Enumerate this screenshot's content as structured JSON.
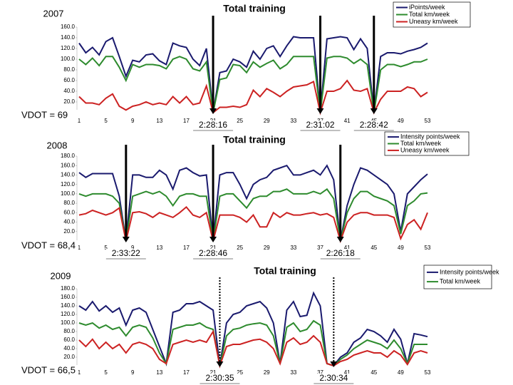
{
  "chart_data": [
    {
      "type": "line",
      "title": "Total training",
      "subtitle": "2007",
      "annotation": "VDOT = 69",
      "x": [
        1,
        2,
        3,
        4,
        5,
        6,
        7,
        8,
        9,
        10,
        11,
        12,
        13,
        14,
        15,
        16,
        17,
        18,
        19,
        20,
        21,
        22,
        23,
        24,
        25,
        26,
        27,
        28,
        29,
        30,
        31,
        32,
        33,
        34,
        35,
        36,
        37,
        38,
        39,
        40,
        41,
        42,
        43,
        44,
        45,
        46,
        47,
        48,
        49,
        50,
        51,
        52,
        53
      ],
      "xlim": [
        1,
        53
      ],
      "xticks": [
        1,
        5,
        9,
        13,
        17,
        21,
        25,
        29,
        33,
        37,
        41,
        45,
        49,
        53
      ],
      "ylim": [
        0,
        160
      ],
      "yticks": [
        {
          "value": 20,
          "label": "20.0"
        },
        {
          "value": 40,
          "label": "40.0"
        },
        {
          "value": 60,
          "label": "60.0"
        },
        {
          "value": 80,
          "label": "80.0"
        },
        {
          "value": 100,
          "label": "100.0"
        },
        {
          "value": 120,
          "label": "120.0"
        },
        {
          "value": 140,
          "label": "140.0"
        },
        {
          "value": 160,
          "label": "160.0"
        }
      ],
      "series": [
        {
          "name": "iPoints/week",
          "color": "#1a1a6e",
          "values": [
            130,
            112,
            122,
            108,
            133,
            140,
            105,
            68,
            98,
            95,
            108,
            110,
            97,
            90,
            130,
            125,
            122,
            100,
            88,
            120,
            0,
            75,
            78,
            100,
            95,
            85,
            115,
            100,
            120,
            125,
            105,
            125,
            142,
            140,
            140,
            140,
            0,
            138,
            140,
            142,
            140,
            118,
            138,
            120,
            0,
            105,
            112,
            112,
            110,
            115,
            118,
            122,
            130
          ]
        },
        {
          "name": "Total km/week",
          "color": "#2e8b2e",
          "values": [
            100,
            90,
            102,
            88,
            105,
            105,
            85,
            60,
            90,
            85,
            90,
            90,
            88,
            82,
            100,
            105,
            100,
            82,
            78,
            95,
            0,
            62,
            65,
            90,
            88,
            75,
            95,
            85,
            92,
            98,
            82,
            90,
            105,
            105,
            105,
            105,
            0,
            102,
            105,
            105,
            102,
            92,
            100,
            90,
            0,
            80,
            90,
            90,
            86,
            90,
            95,
            95,
            100
          ]
        },
        {
          "name": "Uneasy km/week",
          "color": "#cc2222",
          "values": [
            30,
            18,
            18,
            15,
            27,
            35,
            12,
            5,
            12,
            15,
            20,
            15,
            18,
            15,
            30,
            18,
            30,
            15,
            18,
            50,
            0,
            10,
            10,
            12,
            10,
            15,
            42,
            30,
            45,
            38,
            30,
            40,
            48,
            50,
            52,
            58,
            0,
            40,
            40,
            45,
            60,
            42,
            40,
            45,
            0,
            25,
            40,
            40,
            40,
            48,
            45,
            30,
            38
          ]
        }
      ],
      "markers": [
        {
          "label": "2:28:16",
          "week": 21
        },
        {
          "label": "2:31:02",
          "week": 37
        },
        {
          "label": "2:28:42",
          "week": 45
        }
      ]
    },
    {
      "type": "line",
      "title": "Total training",
      "subtitle": "2008",
      "annotation": "VDOT = 68,4",
      "x": [
        1,
        2,
        3,
        4,
        5,
        6,
        7,
        8,
        9,
        10,
        11,
        12,
        13,
        14,
        15,
        16,
        17,
        18,
        19,
        20,
        21,
        22,
        23,
        24,
        25,
        26,
        27,
        28,
        29,
        30,
        31,
        32,
        33,
        34,
        35,
        36,
        37,
        38,
        39,
        40,
        41,
        42,
        43,
        44,
        45,
        46,
        47,
        48,
        49,
        50,
        51,
        52,
        53
      ],
      "xlim": [
        1,
        53
      ],
      "xticks": [
        1,
        5,
        9,
        13,
        17,
        21,
        25,
        29,
        33,
        37,
        41,
        45,
        49,
        53
      ],
      "ylim": [
        0,
        180
      ],
      "yticks": [
        {
          "value": 20,
          "label": "20.0"
        },
        {
          "value": 40,
          "label": "40.0"
        },
        {
          "value": 60,
          "label": "60.0"
        },
        {
          "value": 80,
          "label": "80.0"
        },
        {
          "value": 100,
          "label": "100.0"
        },
        {
          "value": 120,
          "label": "120.0"
        },
        {
          "value": 140,
          "label": "140.0"
        },
        {
          "value": 160,
          "label": "160.0"
        },
        {
          "value": 180,
          "label": "180.0"
        }
      ],
      "series": [
        {
          "name": "Intensity points/week",
          "color": "#1a1a6e",
          "values": [
            145,
            135,
            143,
            143,
            143,
            143,
            95,
            0,
            140,
            140,
            135,
            135,
            150,
            140,
            110,
            150,
            155,
            145,
            138,
            140,
            0,
            140,
            145,
            145,
            120,
            90,
            120,
            130,
            135,
            150,
            155,
            160,
            140,
            140,
            145,
            150,
            140,
            160,
            130,
            0,
            75,
            120,
            155,
            150,
            140,
            130,
            120,
            100,
            20,
            100,
            115,
            130,
            142
          ]
        },
        {
          "name": "Total km/week",
          "color": "#2e8b2e",
          "values": [
            100,
            95,
            100,
            100,
            100,
            95,
            80,
            0,
            95,
            100,
            105,
            100,
            105,
            95,
            75,
            95,
            100,
            100,
            95,
            95,
            0,
            95,
            100,
            100,
            85,
            70,
            90,
            95,
            95,
            105,
            105,
            110,
            100,
            100,
            100,
            105,
            100,
            110,
            90,
            0,
            60,
            90,
            105,
            105,
            95,
            90,
            85,
            75,
            15,
            75,
            85,
            100,
            102
          ]
        },
        {
          "name": "Uneasy km/week",
          "color": "#cc2222",
          "values": [
            55,
            58,
            65,
            60,
            55,
            60,
            70,
            0,
            60,
            62,
            58,
            50,
            60,
            55,
            50,
            60,
            72,
            55,
            50,
            60,
            0,
            55,
            55,
            55,
            50,
            40,
            55,
            30,
            30,
            60,
            50,
            60,
            55,
            55,
            58,
            60,
            55,
            58,
            50,
            0,
            40,
            55,
            60,
            60,
            55,
            55,
            55,
            50,
            5,
            35,
            45,
            25,
            60
          ]
        }
      ],
      "markers": [
        {
          "label": "2:33:22",
          "week": 8
        },
        {
          "label": "2:28:46",
          "week": 21
        },
        {
          "label": "2:26:18",
          "week": 40
        }
      ]
    },
    {
      "type": "line",
      "title": "Total training",
      "subtitle": "2009",
      "annotation": "VDOT = 66,5",
      "x": [
        1,
        2,
        3,
        4,
        5,
        6,
        7,
        8,
        9,
        10,
        11,
        12,
        13,
        14,
        15,
        16,
        17,
        18,
        19,
        20,
        21,
        22,
        23,
        24,
        25,
        26,
        27,
        28,
        29,
        30,
        31,
        32,
        33,
        34,
        35,
        36,
        37,
        38,
        39,
        40,
        41,
        42,
        43,
        44,
        45,
        46,
        47,
        48,
        49,
        50,
        51,
        52,
        53
      ],
      "xlim": [
        1,
        53
      ],
      "xticks": [
        1,
        5,
        9,
        13,
        17,
        21,
        25,
        29,
        33,
        37,
        41,
        45,
        49,
        53
      ],
      "ylim": [
        0,
        180
      ],
      "yticks": [
        {
          "value": 20,
          "label": "20.0"
        },
        {
          "value": 40,
          "label": "40.0"
        },
        {
          "value": 60,
          "label": "60.0"
        },
        {
          "value": 80,
          "label": "80.0"
        },
        {
          "value": 100,
          "label": "100.0"
        },
        {
          "value": 120,
          "label": "120.0"
        },
        {
          "value": 140,
          "label": "140.0"
        },
        {
          "value": 160,
          "label": "160.0"
        },
        {
          "value": 180,
          "label": "180.0"
        }
      ],
      "series": [
        {
          "name": "Intensity points/week",
          "color": "#1a1a6e",
          "values": [
            140,
            130,
            150,
            128,
            140,
            125,
            135,
            95,
            130,
            135,
            125,
            85,
            45,
            5,
            125,
            130,
            145,
            145,
            150,
            140,
            130,
            0,
            100,
            120,
            125,
            140,
            145,
            150,
            135,
            100,
            5,
            130,
            150,
            115,
            118,
            170,
            140,
            5,
            0,
            20,
            30,
            55,
            65,
            85,
            80,
            70,
            55,
            85,
            62,
            5,
            75,
            72,
            68
          ]
        },
        {
          "name": "Total km/week",
          "color": "#2e8b2e",
          "values": [
            100,
            95,
            100,
            88,
            95,
            85,
            90,
            70,
            90,
            95,
            90,
            65,
            30,
            5,
            85,
            90,
            95,
            95,
            100,
            90,
            85,
            0,
            70,
            85,
            88,
            95,
            98,
            100,
            95,
            70,
            5,
            90,
            100,
            80,
            85,
            105,
            95,
            5,
            0,
            15,
            25,
            40,
            50,
            60,
            55,
            50,
            40,
            60,
            40,
            5,
            50,
            50,
            50
          ]
        },
        {
          "color": "#cc2222",
          "values": [
            60,
            45,
            62,
            40,
            55,
            40,
            50,
            30,
            50,
            55,
            50,
            40,
            15,
            5,
            50,
            55,
            60,
            55,
            60,
            55,
            80,
            0,
            45,
            50,
            50,
            55,
            60,
            62,
            55,
            40,
            5,
            55,
            65,
            50,
            55,
            70,
            55,
            5,
            0,
            10,
            15,
            25,
            30,
            35,
            30,
            30,
            20,
            35,
            25,
            3,
            30,
            35,
            30
          ]
        }
      ],
      "markers": [
        {
          "label": "2:30:35",
          "week": 22
        },
        {
          "label": "2:30:34",
          "week": 39
        }
      ]
    }
  ]
}
